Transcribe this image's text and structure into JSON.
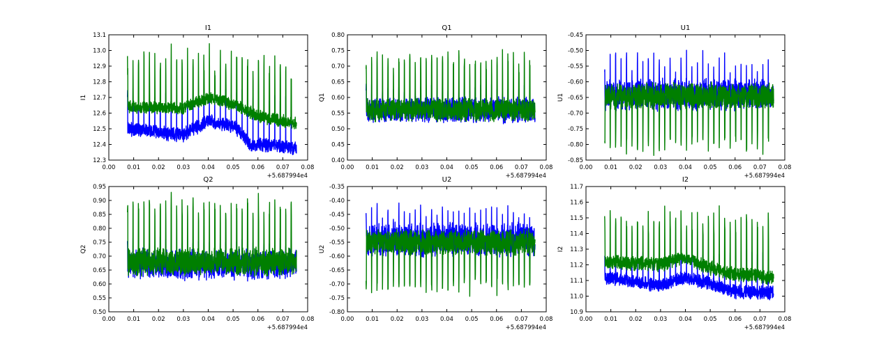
{
  "figure": {
    "colors": {
      "series_1": "#0000ff",
      "series_2": "#007f00",
      "frame": "#000000",
      "background": "#ffffff"
    }
  },
  "chart_data": [
    {
      "type": "line",
      "title": "I1",
      "xlabel": "",
      "ylabel": "I1",
      "x_offset_label": "+5.687994e4",
      "xlim": [
        0.0,
        0.08
      ],
      "ylim": [
        12.3,
        13.1
      ],
      "xticks": [
        "0.00",
        "0.01",
        "0.02",
        "0.03",
        "0.04",
        "0.05",
        "0.06",
        "0.07",
        "0.08"
      ],
      "yticks": [
        "12.3",
        "12.4",
        "12.5",
        "12.6",
        "12.7",
        "12.8",
        "12.9",
        "13.0",
        "13.1"
      ],
      "x_range": [
        0.0075,
        0.0755
      ],
      "cycles": 31,
      "series": [
        {
          "name": "blue",
          "color": "#0000ff",
          "trend": [
            [
              0.0075,
              12.5
            ],
            [
              0.03,
              12.46
            ],
            [
              0.04,
              12.55
            ],
            [
              0.05,
              12.52
            ],
            [
              0.057,
              12.4
            ],
            [
              0.0755,
              12.38
            ]
          ],
          "noise": 0.05,
          "spike_low": 12.7,
          "spike_high": 12.78
        },
        {
          "name": "green",
          "color": "#007f00",
          "trend": [
            [
              0.0075,
              12.64
            ],
            [
              0.03,
              12.63
            ],
            [
              0.04,
              12.7
            ],
            [
              0.05,
              12.66
            ],
            [
              0.06,
              12.58
            ],
            [
              0.0755,
              12.53
            ]
          ],
          "noise": 0.045,
          "spike_low": 12.88,
          "spike_high": 13.07
        }
      ]
    },
    {
      "type": "line",
      "title": "Q1",
      "xlabel": "",
      "ylabel": "Q1",
      "x_offset_label": "+5.687994e4",
      "xlim": [
        0.0,
        0.08
      ],
      "ylim": [
        0.4,
        0.8
      ],
      "xticks": [
        "0.00",
        "0.01",
        "0.02",
        "0.03",
        "0.04",
        "0.05",
        "0.06",
        "0.07",
        "0.08"
      ],
      "yticks": [
        "0.40",
        "0.45",
        "0.50",
        "0.55",
        "0.60",
        "0.65",
        "0.70",
        "0.75",
        "0.80"
      ],
      "x_range": [
        0.0075,
        0.0755
      ],
      "cycles": 31,
      "series": [
        {
          "name": "blue",
          "color": "#0000ff",
          "trend": [
            [
              0.0075,
              0.56
            ],
            [
              0.0755,
              0.56
            ]
          ],
          "noise": 0.045,
          "spike_low": 0.63,
          "spike_high": 0.65
        },
        {
          "name": "green",
          "color": "#007f00",
          "trend": [
            [
              0.0075,
              0.56
            ],
            [
              0.0755,
              0.56
            ]
          ],
          "noise": 0.04,
          "spike_low": 0.73,
          "spike_high": 0.76
        }
      ]
    },
    {
      "type": "line",
      "title": "U1",
      "xlabel": "",
      "ylabel": "U1",
      "x_offset_label": "+5.687994e4",
      "xlim": [
        0.0,
        0.08
      ],
      "ylim": [
        -0.85,
        -0.45
      ],
      "xticks": [
        "0.00",
        "0.01",
        "0.02",
        "0.03",
        "0.04",
        "0.05",
        "0.06",
        "0.07",
        "0.08"
      ],
      "yticks": [
        "-0.85",
        "-0.80",
        "-0.75",
        "-0.70",
        "-0.65",
        "-0.60",
        "-0.55",
        "-0.50",
        "-0.45"
      ],
      "x_range": [
        0.0075,
        0.0755
      ],
      "cycles": 31,
      "series": [
        {
          "name": "blue",
          "color": "#0000ff",
          "trend": [
            [
              0.0075,
              -0.64
            ],
            [
              0.0755,
              -0.64
            ]
          ],
          "noise": 0.055,
          "spike_low": -0.56,
          "spike_high": -0.49
        },
        {
          "name": "green",
          "color": "#007f00",
          "trend": [
            [
              0.0075,
              -0.645
            ],
            [
              0.0755,
              -0.645
            ]
          ],
          "noise": 0.045,
          "spike_low": -0.81,
          "spike_high": -0.84
        }
      ]
    },
    {
      "type": "line",
      "title": "Q2",
      "xlabel": "",
      "ylabel": "Q2",
      "x_offset_label": "+5.687994e4",
      "xlim": [
        0.0,
        0.08
      ],
      "ylim": [
        0.5,
        0.95
      ],
      "xticks": [
        "0.00",
        "0.01",
        "0.02",
        "0.03",
        "0.04",
        "0.05",
        "0.06",
        "0.07",
        "0.08"
      ],
      "yticks": [
        "0.50",
        "0.55",
        "0.60",
        "0.65",
        "0.70",
        "0.75",
        "0.80",
        "0.85",
        "0.90",
        "0.95"
      ],
      "x_range": [
        0.0075,
        0.0755
      ],
      "cycles": 31,
      "series": [
        {
          "name": "blue",
          "color": "#0000ff",
          "trend": [
            [
              0.0075,
              0.67
            ],
            [
              0.0755,
              0.67
            ]
          ],
          "noise": 0.06,
          "spike_low": 0.75,
          "spike_high": 0.78
        },
        {
          "name": "green",
          "color": "#007f00",
          "trend": [
            [
              0.0075,
              0.68
            ],
            [
              0.0755,
              0.68
            ]
          ],
          "noise": 0.055,
          "spike_low": 0.89,
          "spike_high": 0.93
        }
      ]
    },
    {
      "type": "line",
      "title": "U2",
      "xlabel": "",
      "ylabel": "U2",
      "x_offset_label": "+5.687994e4",
      "xlim": [
        0.0,
        0.08
      ],
      "ylim": [
        -0.8,
        -0.35
      ],
      "xticks": [
        "0.00",
        "0.01",
        "0.02",
        "0.03",
        "0.04",
        "0.05",
        "0.06",
        "0.07",
        "0.08"
      ],
      "yticks": [
        "-0.80",
        "-0.75",
        "-0.70",
        "-0.65",
        "-0.60",
        "-0.55",
        "-0.50",
        "-0.45",
        "-0.40",
        "-0.35"
      ],
      "x_range": [
        0.0075,
        0.0755
      ],
      "cycles": 31,
      "series": [
        {
          "name": "blue",
          "color": "#0000ff",
          "trend": [
            [
              0.0075,
              -0.54
            ],
            [
              0.0755,
              -0.54
            ]
          ],
          "noise": 0.065,
          "spike_low": -0.45,
          "spike_high": -0.4
        },
        {
          "name": "green",
          "color": "#007f00",
          "trend": [
            [
              0.0075,
              -0.55
            ],
            [
              0.0755,
              -0.55
            ]
          ],
          "noise": 0.05,
          "spike_low": -0.72,
          "spike_high": -0.76
        }
      ]
    },
    {
      "type": "line",
      "title": "I2",
      "xlabel": "",
      "ylabel": "I2",
      "x_offset_label": "+5.687994e4",
      "xlim": [
        0.0,
        0.08
      ],
      "ylim": [
        10.9,
        11.7
      ],
      "xticks": [
        "0.00",
        "0.01",
        "0.02",
        "0.03",
        "0.04",
        "0.05",
        "0.06",
        "0.07",
        "0.08"
      ],
      "yticks": [
        "10.9",
        "11.0",
        "11.1",
        "11.2",
        "11.3",
        "11.4",
        "11.5",
        "11.6",
        "11.7"
      ],
      "x_range": [
        0.0075,
        0.0755
      ],
      "cycles": 31,
      "series": [
        {
          "name": "blue",
          "color": "#0000ff",
          "trend": [
            [
              0.0075,
              11.12
            ],
            [
              0.03,
              11.07
            ],
            [
              0.04,
              11.12
            ],
            [
              0.05,
              11.08
            ],
            [
              0.06,
              11.03
            ],
            [
              0.0755,
              11.02
            ]
          ],
          "noise": 0.05,
          "spike_low": 11.28,
          "spike_high": 11.32
        },
        {
          "name": "green",
          "color": "#007f00",
          "trend": [
            [
              0.0075,
              11.22
            ],
            [
              0.03,
              11.2
            ],
            [
              0.04,
              11.25
            ],
            [
              0.05,
              11.18
            ],
            [
              0.06,
              11.14
            ],
            [
              0.0755,
              11.12
            ]
          ],
          "noise": 0.05,
          "spike_low": 11.45,
          "spike_high": 11.6
        }
      ]
    }
  ]
}
